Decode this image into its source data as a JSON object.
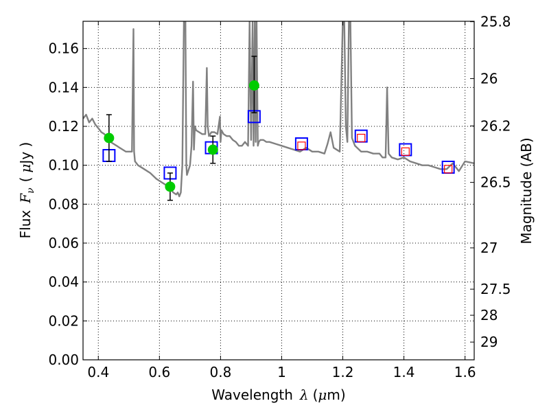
{
  "chart_data": {
    "type": "scatter",
    "xlabel_text": "Wavelength",
    "xlabel_symbol": "λ",
    "xlabel_unit_open": "(",
    "xlabel_unit_mu": "μ",
    "xlabel_unit_rest": "m)",
    "ylabel_text": "Flux",
    "ylabel_symbol": "F",
    "ylabel_sub": "ν",
    "ylabel_unit_open": "(",
    "ylabel_unit_mu": "μ",
    "ylabel_unit_rest": "Jy )",
    "y2label": "Magnitude (AB)",
    "xlim": [
      0.35,
      1.63
    ],
    "ylim": [
      0.0,
      0.174
    ],
    "grid": true,
    "x_ticks": [
      0.4,
      0.6,
      0.8,
      1.0,
      1.2,
      1.4,
      1.6
    ],
    "x_tick_labels": [
      "0.4",
      "0.6",
      "0.8",
      "1",
      "1.2",
      "1.4",
      "1.6"
    ],
    "y_ticks": [
      0.0,
      0.02,
      0.04,
      0.06,
      0.08,
      0.1,
      0.12,
      0.14,
      0.16
    ],
    "y_tick_labels": [
      "0.00",
      "0.02",
      "0.04",
      "0.06",
      "0.08",
      "0.10",
      "0.12",
      "0.14",
      "0.16"
    ],
    "mag_ticks": [
      25.8,
      26,
      26.2,
      26.5,
      27,
      27.5,
      28,
      29
    ],
    "mag_tick_labels": [
      "25.8",
      "26",
      "26.2",
      "26.5",
      "27",
      "27.5",
      "28",
      "29"
    ],
    "colors": {
      "model": "#808080",
      "observed": "#00cc00",
      "errorbar": "#000000",
      "model_photometry": "#0000ff",
      "inner_marker": "#ff0000",
      "grid": "#b0b0b0"
    },
    "series": [
      {
        "kind": "model_spectrum",
        "x": [
          0.35,
          0.36,
          0.37,
          0.38,
          0.39,
          0.4,
          0.41,
          0.42,
          0.43,
          0.44,
          0.45,
          0.46,
          0.47,
          0.48,
          0.49,
          0.5,
          0.51,
          0.515,
          0.517,
          0.52,
          0.53,
          0.55,
          0.57,
          0.59,
          0.61,
          0.63,
          0.645,
          0.655,
          0.66,
          0.665,
          0.67,
          0.675,
          0.68,
          0.683,
          0.685,
          0.688,
          0.69,
          0.7,
          0.705,
          0.71,
          0.713,
          0.716,
          0.72,
          0.73,
          0.74,
          0.75,
          0.755,
          0.758,
          0.762,
          0.77,
          0.78,
          0.79,
          0.798,
          0.8,
          0.803,
          0.81,
          0.82,
          0.83,
          0.84,
          0.85,
          0.86,
          0.87,
          0.88,
          0.89,
          0.895,
          0.9,
          0.905,
          0.908,
          0.912,
          0.915,
          0.918,
          0.922,
          0.925,
          0.93,
          0.94,
          0.95,
          0.96,
          0.98,
          1.0,
          1.02,
          1.04,
          1.06,
          1.08,
          1.1,
          1.12,
          1.14,
          1.15,
          1.16,
          1.17,
          1.19,
          1.2,
          1.205,
          1.21,
          1.215,
          1.22,
          1.225,
          1.23,
          1.24,
          1.26,
          1.28,
          1.3,
          1.32,
          1.33,
          1.34,
          1.345,
          1.35,
          1.36,
          1.38,
          1.4,
          1.42,
          1.44,
          1.46,
          1.48,
          1.5,
          1.52,
          1.54,
          1.56,
          1.58,
          1.6,
          1.63
        ],
        "y": [
          0.124,
          0.126,
          0.122,
          0.124,
          0.121,
          0.119,
          0.117,
          0.116,
          0.114,
          0.112,
          0.111,
          0.11,
          0.109,
          0.108,
          0.107,
          0.107,
          0.107,
          0.17,
          0.107,
          0.102,
          0.1,
          0.098,
          0.096,
          0.093,
          0.091,
          0.089,
          0.086,
          0.085,
          0.086,
          0.084,
          0.086,
          0.1,
          0.174,
          0.174,
          0.174,
          0.1,
          0.095,
          0.1,
          0.11,
          0.143,
          0.108,
          0.12,
          0.118,
          0.117,
          0.116,
          0.116,
          0.15,
          0.12,
          0.115,
          0.117,
          0.117,
          0.116,
          0.125,
          0.112,
          0.118,
          0.116,
          0.115,
          0.115,
          0.113,
          0.112,
          0.11,
          0.11,
          0.112,
          0.11,
          0.174,
          0.113,
          0.174,
          0.11,
          0.174,
          0.112,
          0.174,
          0.11,
          0.112,
          0.113,
          0.113,
          0.112,
          0.112,
          0.111,
          0.11,
          0.109,
          0.108,
          0.107,
          0.109,
          0.107,
          0.107,
          0.106,
          0.111,
          0.117,
          0.109,
          0.107,
          0.174,
          0.174,
          0.12,
          0.112,
          0.174,
          0.174,
          0.114,
          0.11,
          0.107,
          0.107,
          0.106,
          0.106,
          0.104,
          0.104,
          0.14,
          0.106,
          0.104,
          0.103,
          0.104,
          0.102,
          0.101,
          0.1,
          0.1,
          0.099,
          0.098,
          0.098,
          0.101,
          0.097,
          0.102,
          0.101
        ]
      },
      {
        "kind": "observed",
        "x": [
          0.435,
          0.635,
          0.775,
          0.91
        ],
        "y": [
          0.114,
          0.089,
          0.108,
          0.141
        ],
        "yerr_low": [
          0.102,
          0.082,
          0.101,
          0.127
        ],
        "yerr_high": [
          0.126,
          0.096,
          0.115,
          0.156
        ]
      },
      {
        "kind": "model_photometry",
        "x": [
          0.435,
          0.635,
          0.77,
          0.91,
          1.065,
          1.26,
          1.405,
          1.545
        ],
        "y": [
          0.105,
          0.096,
          0.109,
          0.125,
          0.111,
          0.115,
          0.108,
          0.099
        ],
        "inner_x": [
          1.065,
          1.26,
          1.405,
          1.545
        ],
        "inner_y": [
          0.11,
          0.114,
          0.107,
          0.098
        ]
      }
    ]
  }
}
